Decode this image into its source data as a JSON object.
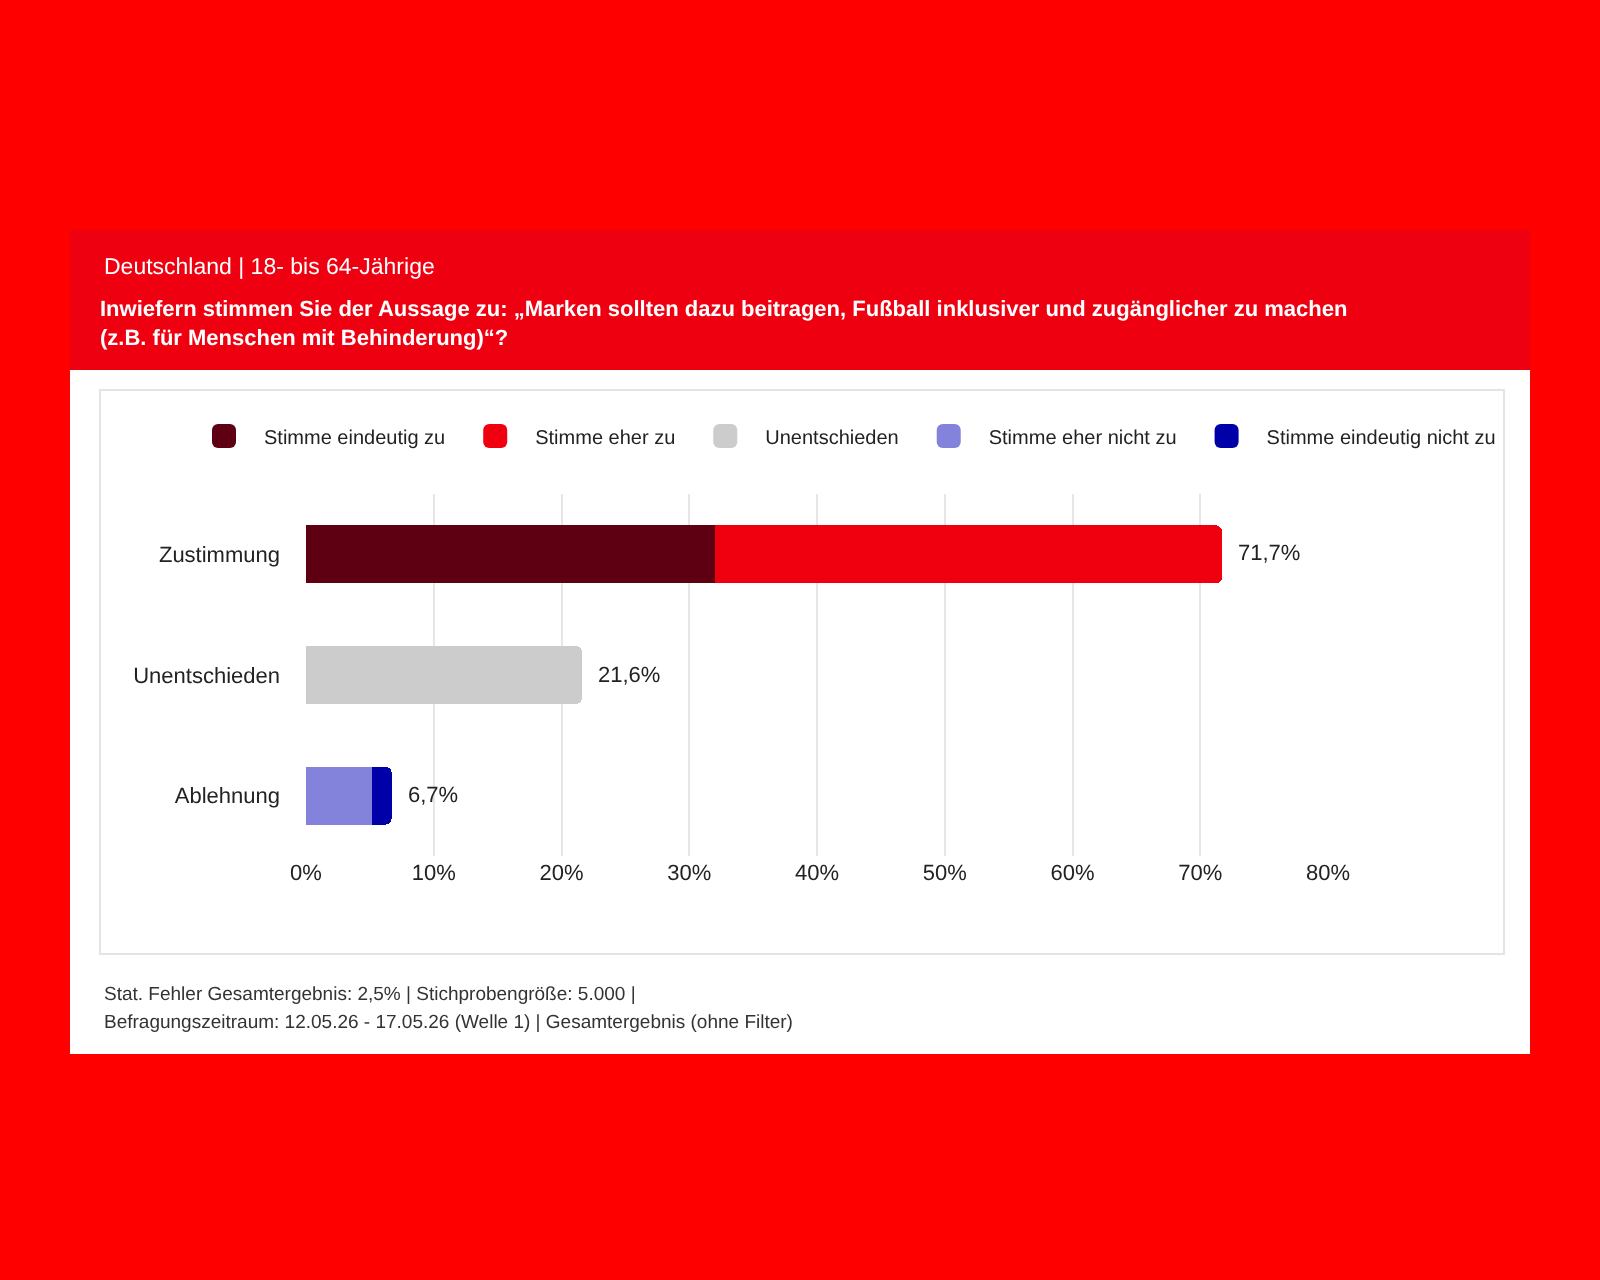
{
  "chart_data": {
    "type": "bar",
    "orientation": "horizontal",
    "stacked": true,
    "title": "Inwiefern stimmen Sie der Aussage zu: „Marken sollten dazu beitragen, Fußball inklusiver und zugänglicher zu machen (z.B. für Menschen mit Behinderung)“?",
    "subtitle": "Deutschland | 18- bis 64-Jährige",
    "categories": [
      "Zustimmung",
      "Unentschieden",
      "Ablehnung"
    ],
    "series": [
      {
        "name": "Stimme eindeutig zu",
        "color": "#5e0011",
        "values": [
          32,
          null,
          null
        ]
      },
      {
        "name": "Stimme eher zu",
        "color": "#f0000e",
        "values": [
          39.7,
          null,
          null
        ]
      },
      {
        "name": "Unentschieden",
        "color": "#cccccc",
        "values": [
          null,
          21.6,
          null
        ]
      },
      {
        "name": "Stimme eher nicht zu",
        "color": "#8383db",
        "values": [
          null,
          null,
          5.2
        ]
      },
      {
        "name": "Stimme eindeutig nicht zu",
        "color": "#0000a8",
        "values": [
          null,
          null,
          1.5
        ]
      }
    ],
    "totals": [
      "71,7%",
      "21,6%",
      "6,7%"
    ],
    "xlim": [
      0,
      80
    ],
    "xticks": [
      {
        "value": 0,
        "label": "0%"
      },
      {
        "value": 10,
        "label": "10%"
      },
      {
        "value": 20,
        "label": "20%"
      },
      {
        "value": 30,
        "label": "30%"
      },
      {
        "value": 40,
        "label": "40%"
      },
      {
        "value": 50,
        "label": "50%"
      },
      {
        "value": 60,
        "label": "60%"
      },
      {
        "value": 70,
        "label": "70%"
      },
      {
        "value": 80,
        "label": "80%"
      }
    ],
    "grid": "x",
    "legend": "top",
    "annotations": [
      "Stat. Fehler Gesamtergebnis: 2,5% | Stichprobengröße: 5.000 |",
      "Befragungszeitraum: 12.05.26 - 17.05.26 (Welle 1) | Gesamtergebnis (ohne Filter)"
    ]
  }
}
